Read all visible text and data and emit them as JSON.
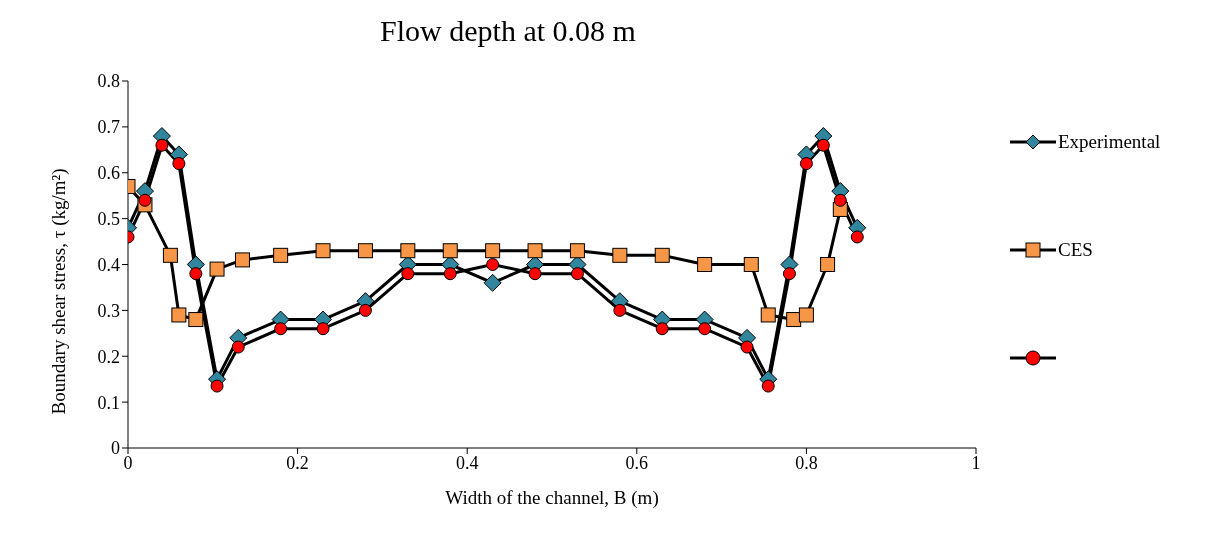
{
  "chart_data": {
    "type": "line",
    "title": "Flow depth at 0.08 m",
    "xlabel": "Width of the channel, B (m)",
    "ylabel": "Boundary shear stress, τ (kg/m²)",
    "xlim": [
      0,
      1
    ],
    "xticks": [
      0,
      0.2,
      0.4,
      0.6,
      0.8,
      1
    ],
    "ylim": [
      0,
      0.8
    ],
    "yticks": [
      0,
      0.1,
      0.2,
      0.3,
      0.4,
      0.5,
      0.6,
      0.7,
      0.8
    ],
    "grid": false,
    "legend": "right",
    "series": [
      {
        "name": "Experimental",
        "color": "#31859c",
        "marker": "diamond",
        "x": [
          0,
          0.02,
          0.04,
          0.06,
          0.08,
          0.105,
          0.13,
          0.18,
          0.23,
          0.28,
          0.33,
          0.38,
          0.43,
          0.48,
          0.53,
          0.58,
          0.63,
          0.68,
          0.73,
          0.755,
          0.78,
          0.8,
          0.82,
          0.84,
          0.86
        ],
        "values": [
          0.48,
          0.56,
          0.68,
          0.64,
          0.4,
          0.15,
          0.24,
          0.28,
          0.28,
          0.32,
          0.4,
          0.4,
          0.36,
          0.4,
          0.4,
          0.32,
          0.28,
          0.28,
          0.24,
          0.15,
          0.4,
          0.64,
          0.68,
          0.56,
          0.48
        ]
      },
      {
        "name": "CES",
        "color": "#f79646",
        "marker": "square",
        "x": [
          0,
          0.02,
          0.05,
          0.06,
          0.08,
          0.105,
          0.135,
          0.18,
          0.23,
          0.28,
          0.33,
          0.38,
          0.43,
          0.48,
          0.53,
          0.58,
          0.63,
          0.68,
          0.735,
          0.755,
          0.785,
          0.8,
          0.825,
          0.84
        ],
        "values": [
          0.57,
          0.53,
          0.42,
          0.29,
          0.28,
          0.39,
          0.41,
          0.42,
          0.43,
          0.43,
          0.43,
          0.43,
          0.43,
          0.43,
          0.43,
          0.42,
          0.42,
          0.4,
          0.4,
          0.29,
          0.28,
          0.29,
          0.4,
          0.52
        ]
      },
      {
        "color": "#ff0000",
        "marker": "circle",
        "x": [
          0,
          0.02,
          0.04,
          0.06,
          0.08,
          0.105,
          0.13,
          0.18,
          0.23,
          0.28,
          0.33,
          0.38,
          0.43,
          0.48,
          0.53,
          0.58,
          0.63,
          0.68,
          0.73,
          0.755,
          0.78,
          0.8,
          0.82,
          0.84,
          0.86
        ],
        "values": [
          0.46,
          0.54,
          0.66,
          0.62,
          0.38,
          0.135,
          0.22,
          0.26,
          0.26,
          0.3,
          0.38,
          0.38,
          0.4,
          0.38,
          0.38,
          0.3,
          0.26,
          0.26,
          0.22,
          0.135,
          0.38,
          0.62,
          0.66,
          0.54,
          0.46
        ]
      }
    ]
  }
}
